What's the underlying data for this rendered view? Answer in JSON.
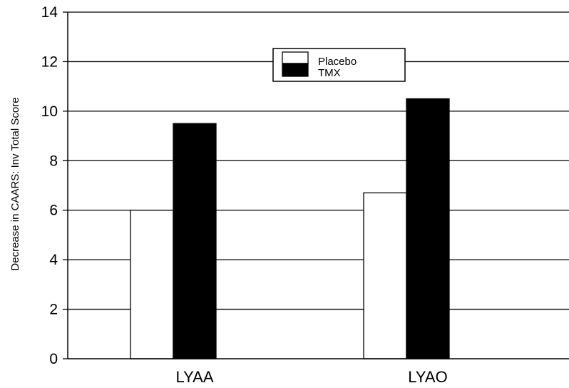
{
  "chart_data": {
    "type": "bar",
    "title": "",
    "xlabel": "",
    "ylabel": "Decrease in CAARS: Inv Total Score",
    "categories": [
      "LYAA",
      "LYAO"
    ],
    "series": [
      {
        "name": "Placebo",
        "values": [
          6.0,
          6.7
        ],
        "color": "#ffffff"
      },
      {
        "name": "TMX",
        "values": [
          9.5,
          10.5
        ],
        "color": "#000000"
      }
    ],
    "ylim": [
      0,
      14
    ],
    "yticks": [
      "0",
      "2",
      "4",
      "6",
      "8",
      "10",
      "12",
      "14"
    ],
    "grid": true,
    "legend_position": "top-center"
  }
}
